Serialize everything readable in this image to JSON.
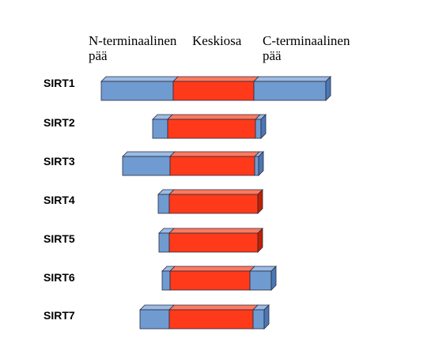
{
  "headers": {
    "n_terminal": "N-terminaalinen\npää",
    "central": "Keskiosa",
    "c_terminal": "C-terminaalinen\npää"
  },
  "proteins": [
    {
      "name": "SIRT1"
    },
    {
      "name": "SIRT2"
    },
    {
      "name": "SIRT3"
    },
    {
      "name": "SIRT4"
    },
    {
      "name": "SIRT5"
    },
    {
      "name": "SIRT6"
    },
    {
      "name": "SIRT7"
    }
  ],
  "colors": {
    "terminal": "#6f9bd1",
    "terminal_top": "#9bbbe3",
    "terminal_side": "#4a78b3",
    "core": "#ff3a1a",
    "core_top": "#ff7a5e",
    "core_side": "#c02000",
    "outline": "#2a2a40"
  }
}
